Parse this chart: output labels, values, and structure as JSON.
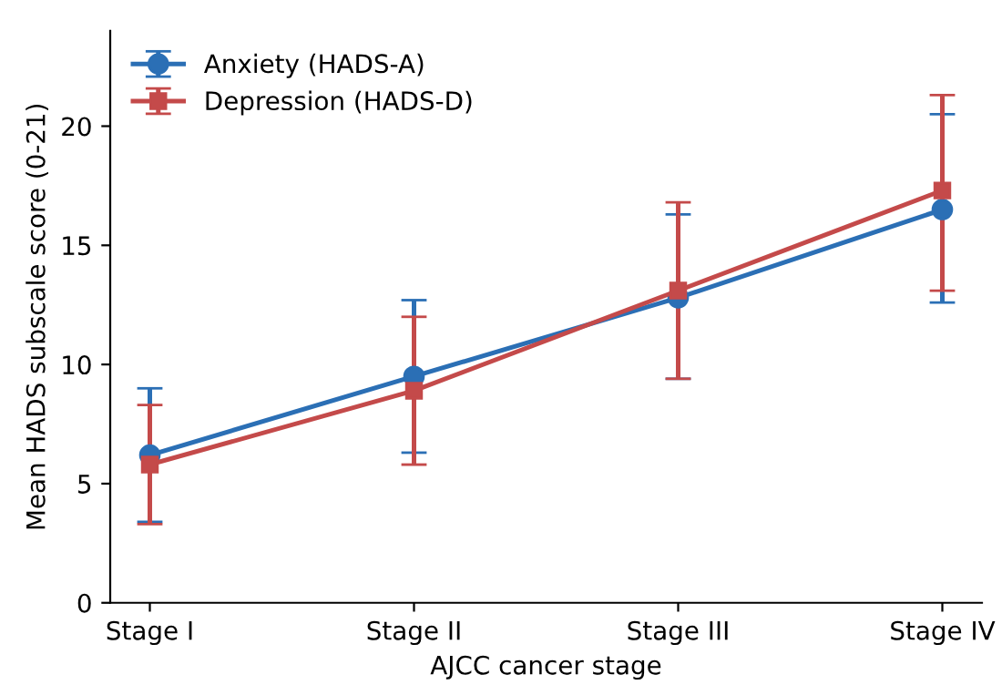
{
  "chart_data": {
    "type": "line",
    "xlabel": "AJCC cancer stage",
    "ylabel": "Mean HADS subscale score (0-21)",
    "categories": [
      "Stage I",
      "Stage II",
      "Stage III",
      "Stage IV"
    ],
    "series": [
      {
        "name": "Anxiety (HADS-A)",
        "color": "#2b6fb5",
        "marker": "circle",
        "values": [
          6.2,
          9.5,
          12.8,
          16.5
        ],
        "errors": [
          [
            3.4,
            9.0
          ],
          [
            6.3,
            12.7
          ],
          [
            9.4,
            16.3
          ],
          [
            12.6,
            20.5
          ]
        ]
      },
      {
        "name": "Depression (HADS-D)",
        "color": "#c44a4a",
        "marker": "square",
        "values": [
          5.8,
          8.9,
          13.1,
          17.3
        ],
        "errors": [
          [
            3.3,
            8.3
          ],
          [
            5.8,
            12.0
          ],
          [
            9.4,
            16.8
          ],
          [
            13.1,
            21.3
          ]
        ]
      }
    ],
    "ylim": [
      0,
      24
    ],
    "yticks": [
      0,
      5,
      10,
      15,
      20
    ],
    "grid": false,
    "legend": "top left",
    "line_style": "solid"
  }
}
